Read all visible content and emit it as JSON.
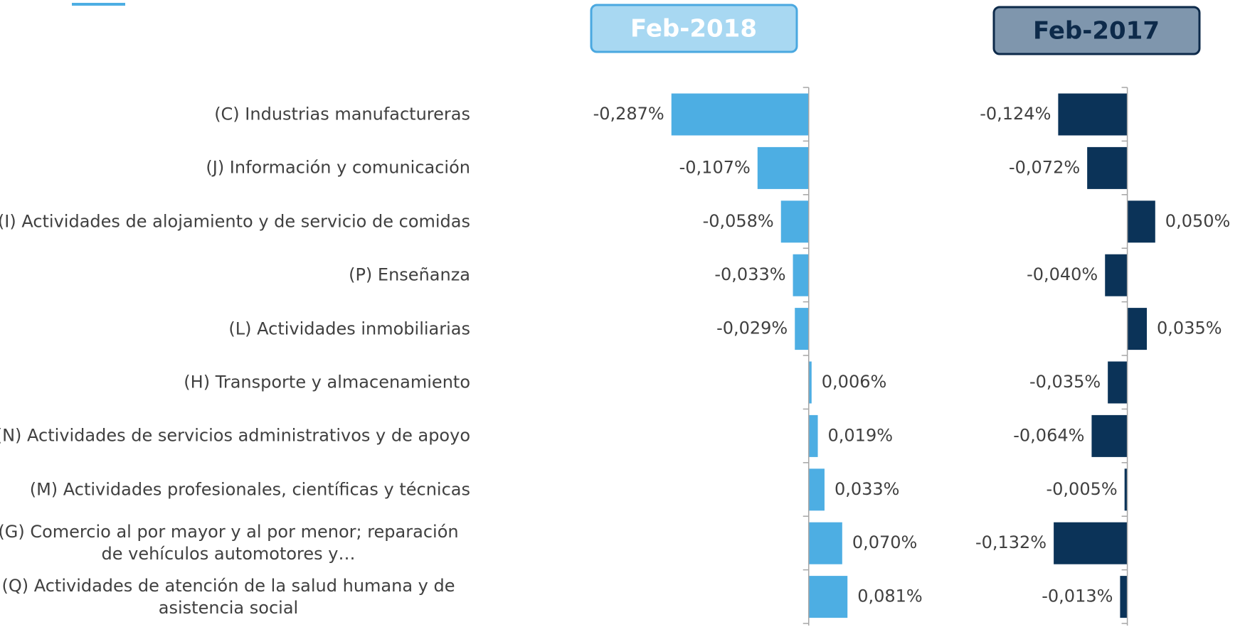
{
  "chart_data": [
    {
      "type": "barh",
      "title": "Feb-2018",
      "color": "#4daee3",
      "categories": [
        "(C) Industrias manufactureras",
        "(J) Información y comunicación",
        "(I) Actividades de alojamiento y de servicio de comidas",
        "(P) Enseñanza",
        "(L) Actividades inmobiliarias",
        "(H) Transporte y almacenamiento",
        "(N) Actividades de servicios administrativos y de apoyo",
        "(M) Actividades profesionales, científicas y técnicas",
        "(G) Comercio al por mayor y al por menor; reparación de vehículos automotores y…",
        "(Q) Actividades de atención de la salud humana y de asistencia social"
      ],
      "values": [
        -0.287,
        -0.107,
        -0.058,
        -0.033,
        -0.029,
        0.006,
        0.019,
        0.033,
        0.07,
        0.081
      ],
      "value_labels": [
        "-0,287%",
        "-0,107%",
        "-0,058%",
        "-0,033%",
        "-0,029%",
        "0,006%",
        "0,019%",
        "0,033%",
        "0,070%",
        "0,081%"
      ],
      "xlim": [
        -0.3,
        0.1
      ]
    },
    {
      "type": "barh",
      "title": "Feb-2017",
      "color": "#0b3358",
      "values": [
        -0.124,
        -0.072,
        0.05,
        -0.04,
        0.035,
        -0.035,
        -0.064,
        -0.005,
        -0.132,
        -0.013
      ],
      "value_labels": [
        "-0,124%",
        "-0,072%",
        "0,050%",
        "-0,040%",
        "0,035%",
        "-0,035%",
        "-0,064%",
        "-0,005%",
        "-0,132%",
        "-0,013%"
      ],
      "xlim": [
        -0.15,
        0.1
      ]
    }
  ]
}
